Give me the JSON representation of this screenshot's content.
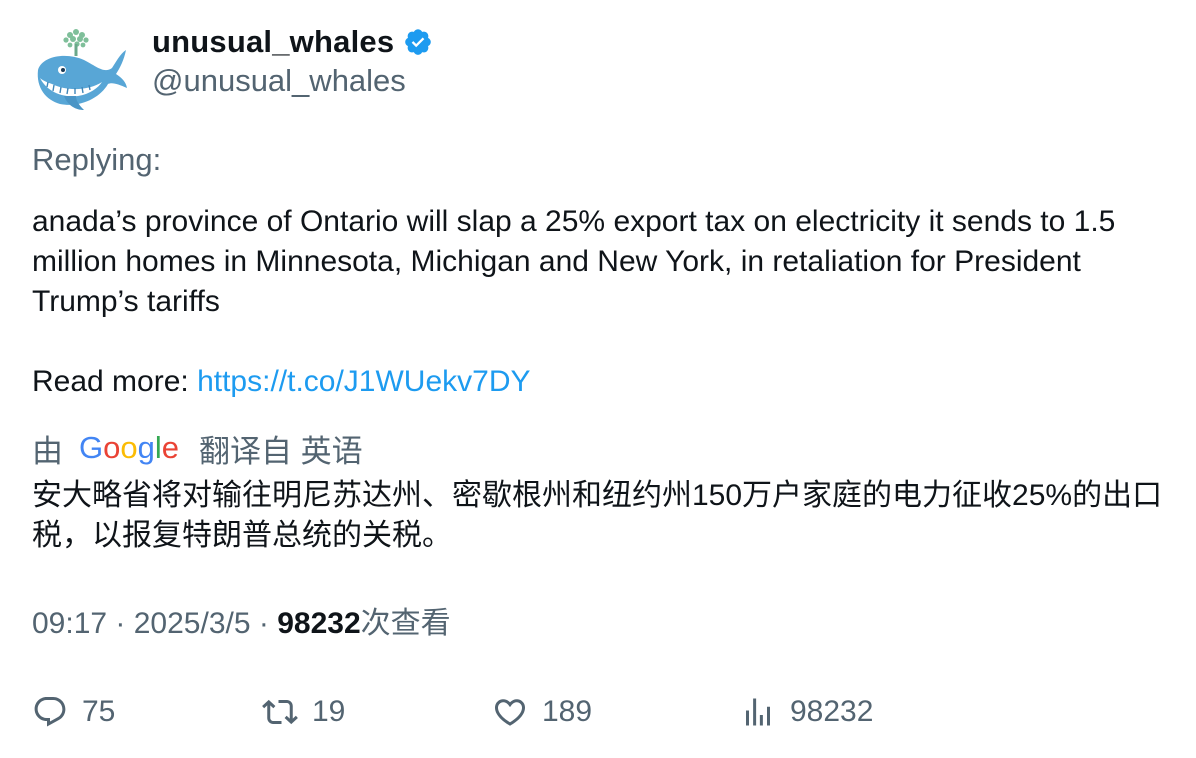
{
  "author": {
    "name": "unusual_whales",
    "handle": "@unusual_whales",
    "verified_color": "#1d9bf0"
  },
  "replying_label": "Replying:",
  "body": {
    "line1": "anada’s province of Ontario will slap a 25% export tax on electricity it sends to 1.5 million homes in Minnesota, Michigan and New York, in retaliation for President Trump’s tariffs",
    "read_more_label": "Read more: ",
    "link": "https://t.co/J1WUekv7DY"
  },
  "translation": {
    "prefix": "由",
    "suffix": "翻译自 英语",
    "provider_logo": "google-logo",
    "text": "安大略省将对输往明尼苏达州、密歇根州和纽约州150万户家庭的电力征收25%的出口税，以报复特朗普总统的关税。"
  },
  "meta": {
    "time": "09:17",
    "separator": " · ",
    "date": "2025/3/5",
    "views": "98232",
    "views_suffix": "次查看"
  },
  "actions": {
    "replies": "75",
    "retweets": "19",
    "likes": "189",
    "views": "98232"
  },
  "icons": {
    "reply": "reply-icon",
    "retweet": "retweet-icon",
    "like": "heart-icon",
    "views": "bar-chart-icon"
  }
}
